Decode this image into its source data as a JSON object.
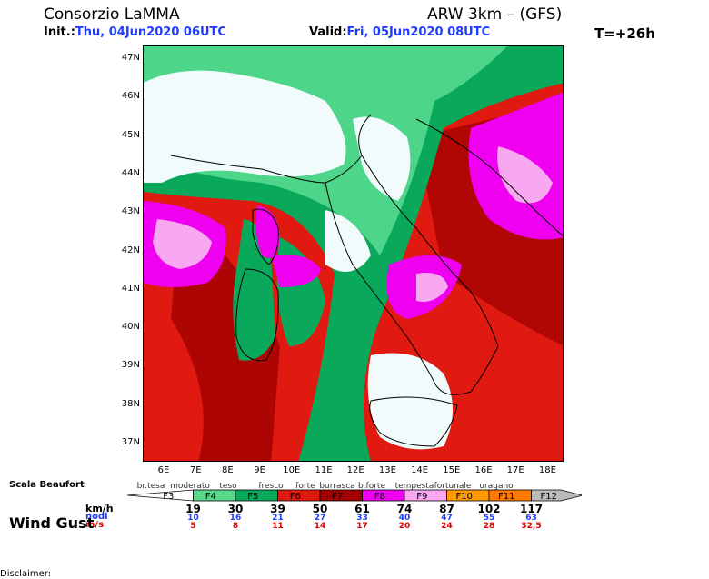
{
  "header": {
    "org": "Consorzio LaMMA",
    "model": "ARW 3km – (GFS)",
    "init_label": "Init.:",
    "init_value": "Thu, 04Jun2020 06UTC",
    "valid_label": "Valid:",
    "valid_value": "Fri, 05Jun2020 08UTC",
    "forecast_step": "T=+26h"
  },
  "map": {
    "lat_labels": [
      "47N",
      "46N",
      "45N",
      "44N",
      "43N",
      "42N",
      "41N",
      "40N",
      "39N",
      "38N",
      "37N"
    ],
    "lon_labels": [
      "6E",
      "7E",
      "8E",
      "9E",
      "10E",
      "11E",
      "12E",
      "13E",
      "14E",
      "15E",
      "16E",
      "17E",
      "18E"
    ],
    "colors": {
      "calm": "#f2fbfb",
      "light_green": "#4dd68a",
      "green": "#0aa85a",
      "red": "#e01a10",
      "dark_red": "#a00000",
      "magenta": "#f000f0",
      "pink": "#f8a8f0"
    }
  },
  "legend": {
    "scale_title": "Scala Beaufort",
    "beaufort_names": [
      "br.tesa",
      "moderato",
      "teso",
      "fresco",
      "forte",
      "burrasca",
      "b.forte",
      "tempesta",
      "fortunale",
      "uragano"
    ],
    "classes": [
      {
        "label": "F3",
        "color": "#ffffff"
      },
      {
        "label": "F4",
        "color": "#5ad88c"
      },
      {
        "label": "F5",
        "color": "#0aa85a"
      },
      {
        "label": "F6",
        "color": "#e01a10"
      },
      {
        "label": "F7",
        "color": "#a00000"
      },
      {
        "label": "F8",
        "color": "#f000f0"
      },
      {
        "label": "F9",
        "color": "#f8a8f0"
      },
      {
        "label": "F10",
        "color": "#ff9b00"
      },
      {
        "label": "F11",
        "color": "#ff7a00"
      },
      {
        "label": "F12",
        "color": "#bbbbbb"
      }
    ],
    "units": {
      "kmh": "km/h",
      "nodi": "nodi",
      "ms": "m/s"
    },
    "variable": "Wind Gust",
    "thresholds": [
      {
        "kmh": "19",
        "nodi": "10",
        "ms": "5"
      },
      {
        "kmh": "30",
        "nodi": "16",
        "ms": "8"
      },
      {
        "kmh": "39",
        "nodi": "21",
        "ms": "11"
      },
      {
        "kmh": "50",
        "nodi": "27",
        "ms": "14"
      },
      {
        "kmh": "61",
        "nodi": "33",
        "ms": "17"
      },
      {
        "kmh": "74",
        "nodi": "40",
        "ms": "20"
      },
      {
        "kmh": "87",
        "nodi": "47",
        "ms": "24"
      },
      {
        "kmh": "102",
        "nodi": "55",
        "ms": "28"
      },
      {
        "kmh": "117",
        "nodi": "63",
        "ms": "32,5"
      }
    ]
  },
  "footer": {
    "disclaimer": "Disclaimer:"
  }
}
